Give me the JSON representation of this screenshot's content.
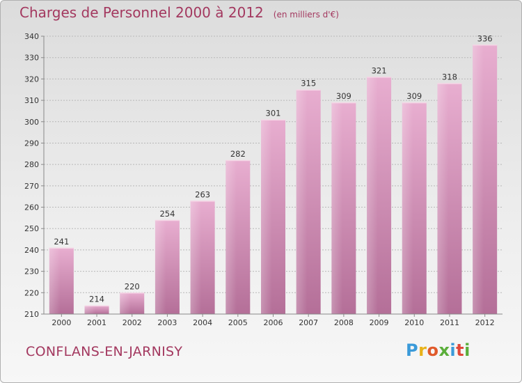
{
  "title": "Charges de Personnel 2000 à 2012",
  "subtitle": "(en milliers d'€)",
  "commune": "CONFLANS-EN-JARNISY",
  "logo": {
    "letters": [
      "P",
      "r",
      "o",
      "x",
      "i",
      "t",
      "i"
    ],
    "colors": [
      "#3a9ad9",
      "#e8b21a",
      "#e05a2b",
      "#5aae3a",
      "#3a9ad9",
      "#e0483a",
      "#5aae3a"
    ]
  },
  "colors": {
    "bar": "#cf8fb2",
    "title": "#a3385f"
  },
  "chart_data": {
    "type": "bar",
    "categories": [
      "2000",
      "2001",
      "2002",
      "2003",
      "2004",
      "2005",
      "2006",
      "2007",
      "2008",
      "2009",
      "2010",
      "2011",
      "2012"
    ],
    "values": [
      241,
      214,
      220,
      254,
      263,
      282,
      301,
      315,
      309,
      321,
      309,
      318,
      336
    ],
    "yticks": [
      210,
      220,
      230,
      240,
      250,
      260,
      270,
      280,
      290,
      300,
      310,
      320,
      330,
      340
    ],
    "ylim": [
      210,
      340
    ],
    "grid": true
  }
}
